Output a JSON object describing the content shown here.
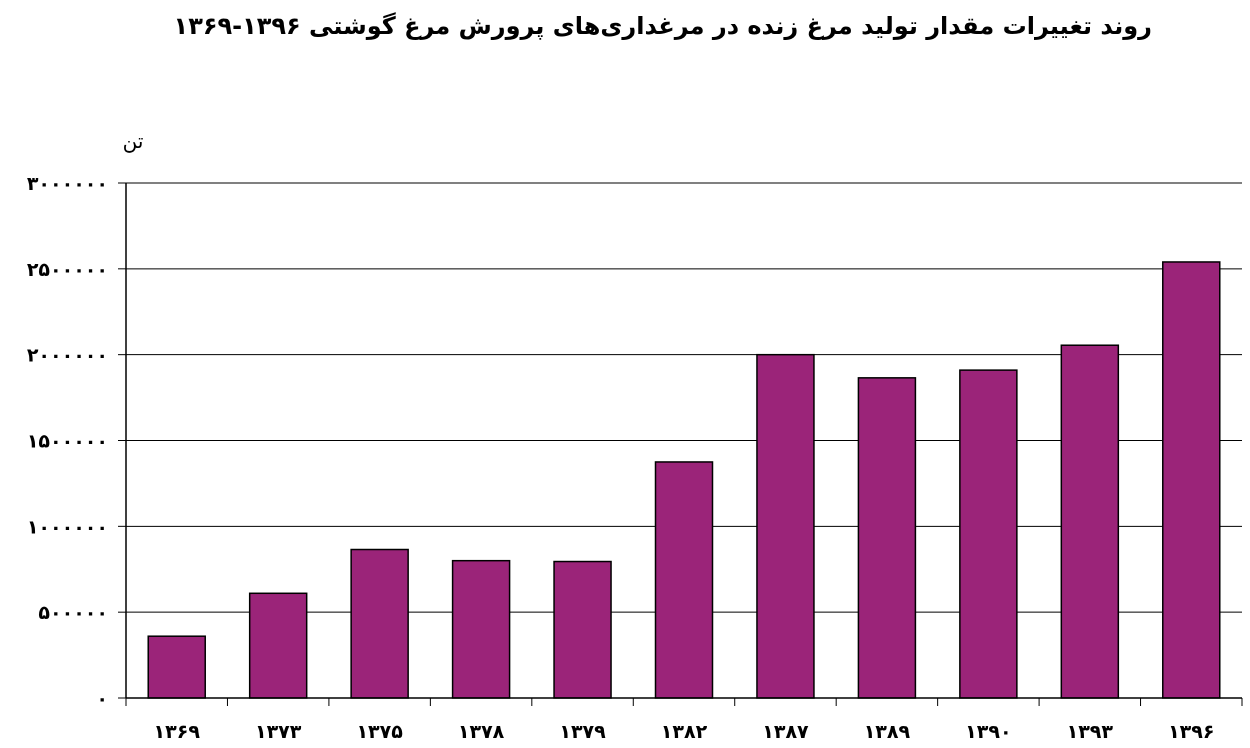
{
  "chart_data": {
    "type": "bar",
    "title": "روند تغییرات مقدار تولید مرغ زنده در مرغداری‌های پرورش مرغ گوشتی ۱۳۹۶-۱۳۶۹",
    "ylabel": "تن",
    "xlabel": "",
    "categories": [
      "۱۳۶۹",
      "۱۳۷۳",
      "۱۳۷۵",
      "۱۳۷۸",
      "۱۳۷۹",
      "۱۳۸۲",
      "۱۳۸۷",
      "۱۳۸۹",
      "۱۳۹۰",
      "۱۳۹۳",
      "۱۳۹۶"
    ],
    "values": [
      360000,
      610000,
      865000,
      800000,
      795000,
      1375000,
      2000000,
      1865000,
      1910000,
      2055000,
      2540000
    ],
    "ylim": [
      0,
      3000000
    ],
    "yticks": [
      0,
      500000,
      1000000,
      1500000,
      2000000,
      2500000,
      3000000
    ],
    "ytick_labels": [
      "۰",
      "۵۰۰۰۰۰",
      "۱۰۰۰۰۰۰",
      "۱۵۰۰۰۰۰",
      "۲۰۰۰۰۰۰",
      "۲۵۰۰۰۰۰",
      "۳۰۰۰۰۰۰"
    ],
    "grid": true,
    "bar_color": "#9b2479"
  }
}
